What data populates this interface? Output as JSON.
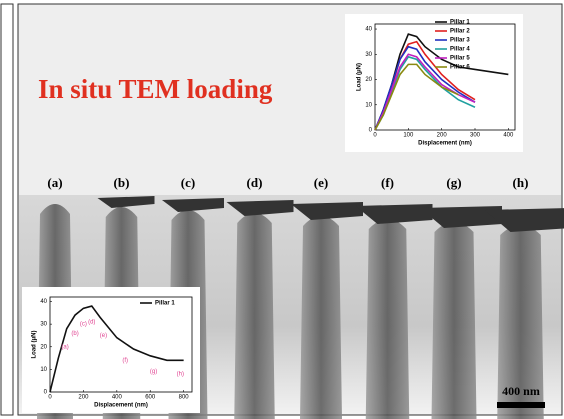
{
  "title": "In situ TEM loading",
  "panels": [
    "(a)",
    "(b)",
    "(c)",
    "(d)",
    "(e)",
    "(f)",
    "(g)",
    "(h)"
  ],
  "scale_bar": "400 nm",
  "chart_data": [
    {
      "type": "line",
      "xlabel": "Displacement (nm)",
      "ylabel": "Load (μN)",
      "x": [
        0,
        25,
        50,
        75,
        100,
        125,
        150,
        200,
        250,
        300,
        350,
        400
      ],
      "xlim": [
        0,
        420
      ],
      "ylim": [
        0,
        42
      ],
      "xticks": [
        0,
        100,
        200,
        300,
        400
      ],
      "yticks": [
        0,
        10,
        20,
        30,
        40
      ],
      "series": [
        {
          "name": "Pillar 1",
          "color": "#111111",
          "values": [
            0,
            8,
            18,
            30,
            38,
            37,
            33,
            28,
            25,
            24,
            23,
            22
          ]
        },
        {
          "name": "Pillar 2",
          "color": "#e02020",
          "values": [
            0,
            7,
            17,
            28,
            34,
            35,
            30,
            22,
            16,
            12,
            null,
            null
          ]
        },
        {
          "name": "Pillar 3",
          "color": "#2030c0",
          "values": [
            0,
            8,
            18,
            28,
            33,
            32,
            27,
            20,
            15,
            11,
            null,
            null
          ]
        },
        {
          "name": "Pillar 4",
          "color": "#20a0a0",
          "values": [
            0,
            6,
            15,
            24,
            29,
            28,
            24,
            17,
            12,
            9,
            null,
            null
          ]
        },
        {
          "name": "Pillar 5",
          "color": "#c020c0",
          "values": [
            0,
            7,
            16,
            25,
            30,
            29,
            25,
            18,
            14,
            11,
            null,
            null
          ]
        },
        {
          "name": "Pillar 6",
          "color": "#8a8a10",
          "values": [
            0,
            6,
            14,
            22,
            26,
            26,
            22,
            17,
            14,
            null,
            null,
            null
          ]
        }
      ]
    },
    {
      "type": "line",
      "xlabel": "Displacement (nm)",
      "ylabel": "Load (μN)",
      "x": [
        0,
        50,
        100,
        150,
        200,
        250,
        300,
        400,
        500,
        600,
        700,
        800
      ],
      "xlim": [
        0,
        850
      ],
      "ylim": [
        0,
        42
      ],
      "xticks": [
        0,
        200,
        400,
        600,
        800
      ],
      "yticks": [
        0,
        10,
        20,
        30,
        40
      ],
      "series": [
        {
          "name": "Pillar 1",
          "color": "#111111",
          "values": [
            0,
            15,
            28,
            34,
            37,
            38,
            33,
            24,
            19,
            16,
            14,
            14
          ]
        }
      ],
      "annotations": [
        {
          "text": "(a)",
          "x": 90,
          "y": 20
        },
        {
          "text": "(b)",
          "x": 150,
          "y": 26
        },
        {
          "text": "(c)",
          "x": 200,
          "y": 30
        },
        {
          "text": "(d)",
          "x": 250,
          "y": 31
        },
        {
          "text": "(e)",
          "x": 320,
          "y": 25
        },
        {
          "text": "(f)",
          "x": 450,
          "y": 14
        },
        {
          "text": "(g)",
          "x": 620,
          "y": 9
        },
        {
          "text": "(h)",
          "x": 780,
          "y": 8
        }
      ]
    }
  ]
}
